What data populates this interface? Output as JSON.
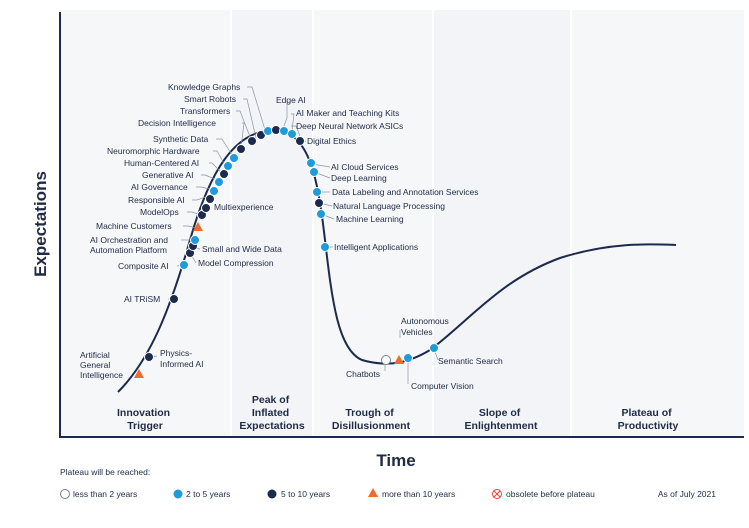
{
  "axes": {
    "y_label": "Expectations",
    "x_label": "Time"
  },
  "phases": [
    [
      "Innovation",
      "Trigger"
    ],
    [
      "Peak of",
      "Inflated",
      "Expectations"
    ],
    [
      "Trough of",
      "Disillusionment"
    ],
    [
      "Slope of",
      "Enlightenment"
    ],
    [
      "Plateau of",
      "Productivity"
    ]
  ],
  "technologies": {
    "artificial_general_intelligence": [
      "Artificial",
      "General",
      "Intelligence"
    ],
    "physics_informed_ai": [
      "Physics-",
      "Informed AI"
    ],
    "ai_trism": "AI TRiSM",
    "composite_ai": "Composite AI",
    "model_compression": "Model Compression",
    "small_and_wide_data": "Small and Wide Data",
    "ai_orchestration": [
      "AI Orchestration and",
      "Automation Platform"
    ],
    "machine_customers": "Machine Customers",
    "modelops": "ModelOps",
    "multiexperience": "Multiexperience",
    "responsible_ai": "Responsible AI",
    "ai_governance": "AI Governance",
    "generative_ai": "Generative AI",
    "human_centered_ai": "Human-Centered AI",
    "neuromorphic_hardware": "Neuromorphic Hardware",
    "synthetic_data": "Synthetic Data",
    "decision_intelligence": "Decision Intelligence",
    "transformers": "Transformers",
    "smart_robots": "Smart Robots",
    "knowledge_graphs": "Knowledge Graphs",
    "edge_ai": "Edge AI",
    "ai_maker": "AI Maker and Teaching Kits",
    "deep_neural_network_asics": "Deep Neural Network ASICs",
    "digital_ethics": "Digital Ethics",
    "ai_cloud_services": "AI Cloud Services",
    "deep_learning": "Deep Learning",
    "data_labeling": "Data Labeling and Annotation Services",
    "natural_language_processing": "Natural Language Processing",
    "machine_learning": "Machine Learning",
    "intelligent_applications": "Intelligent Applications",
    "chatbots": "Chatbots",
    "autonomous_vehicles": [
      "Autonomous",
      "Vehicles"
    ],
    "computer_vision": "Computer Vision",
    "semantic_search": "Semantic Search"
  },
  "legend": {
    "title": "Plateau will be reached:",
    "less_than_2": "less than 2 years",
    "two_to_5": "2 to 5 years",
    "five_to_10": "5 to 10 years",
    "more_than_10": "more than 10 years",
    "obsolete": "obsolete before plateau",
    "as_of": "As of July 2021"
  },
  "colors": {
    "light_blue": "#1f9bd9",
    "dark_navy": "#1c2a4d",
    "orange": "#f26b2a",
    "obsolete_red": "#e0463a",
    "curve": "#1c2a4d"
  }
}
